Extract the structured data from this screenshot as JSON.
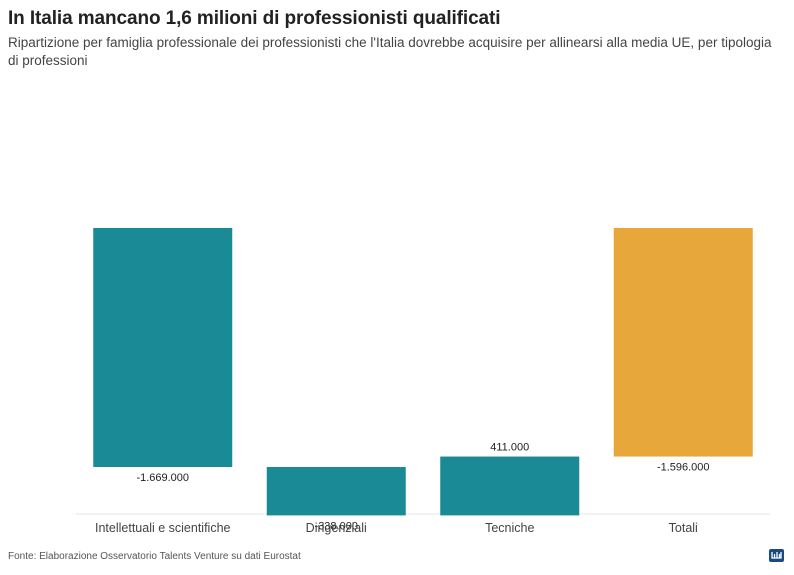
{
  "title": "In Italia mancano 1,6 milioni di professionisti qualificati",
  "subtitle": "Ripartizione per famiglia professionale dei professionisti che l'Italia dovrebbe acquisire per allinearsi alla media UE, per tipologia di professioni",
  "footer": "Fonte: Elaborazione Osservatorio Talents Venture su dati Eurostat",
  "logo_icon": "datawrapper-logo-icon",
  "colors": {
    "increase": "#1a8a96",
    "decrease": "#1a8a96",
    "total": "#e7a73a"
  },
  "chart_data": {
    "type": "waterfall",
    "title": "In Italia mancano 1,6 milioni di professionisti qualificati",
    "categories": [
      "Intellettuali e scientifiche",
      "Dirigenziali",
      "Tecniche",
      "Totali"
    ],
    "values": [
      -1669000,
      -338000,
      411000,
      -1596000
    ],
    "labels": [
      "-1.669.000",
      "-338.000",
      "411.000",
      "-1.596.000"
    ],
    "is_total": [
      false,
      false,
      false,
      true
    ],
    "xlabel": "",
    "ylabel": "",
    "grid": false,
    "legend": "none"
  }
}
